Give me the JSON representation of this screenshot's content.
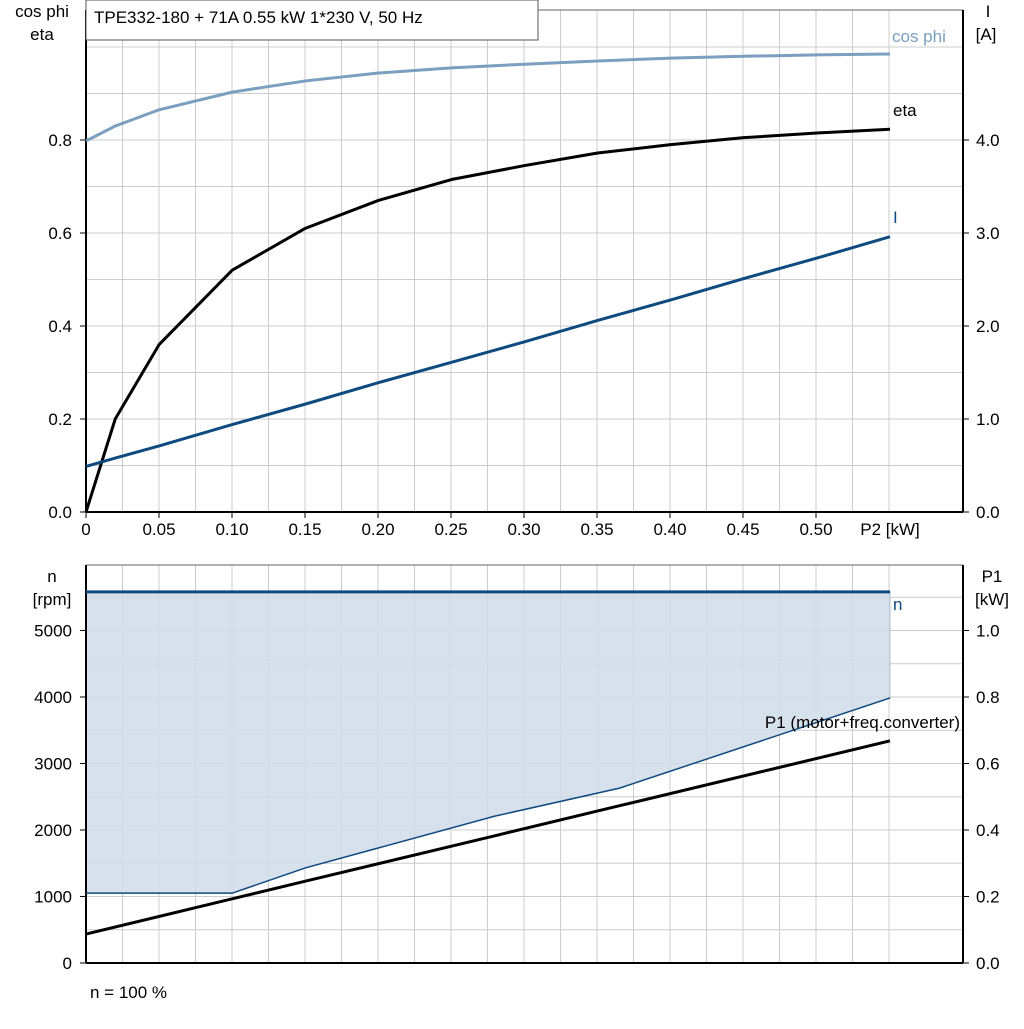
{
  "title": "TPE332-180 + 71A   0.55 kW   1*230 V, 50 Hz",
  "footer": "n = 100 %",
  "colors": {
    "cosphi": "#7a9fc0",
    "eta": "#000000",
    "current": "#0e4a80",
    "speed": "#0e4a80",
    "fill": "#d0dce8",
    "p1": "#000000",
    "grid": "#cccccc"
  },
  "chart_data": [
    {
      "type": "line",
      "x": [
        0,
        0.02,
        0.05,
        0.1,
        0.15,
        0.2,
        0.25,
        0.3,
        0.35,
        0.4,
        0.45,
        0.5,
        0.55
      ],
      "xlabel": "P2 [kW]",
      "xticks": [
        "0",
        "0.05",
        "0.10",
        "0.15",
        "0.20",
        "0.25",
        "0.30",
        "0.35",
        "0.40",
        "0.45",
        "0.50"
      ],
      "xlim": [
        0,
        0.55
      ],
      "ylabel_left": [
        "cos phi",
        "eta"
      ],
      "ylim_left": [
        0,
        1.0
      ],
      "yticks_left": [
        "0.0",
        "0.2",
        "0.4",
        "0.6",
        "0.8"
      ],
      "ylabel_right": [
        "I",
        "[A]"
      ],
      "ylim_right": [
        0,
        5.0
      ],
      "yticks_right": [
        "0.0",
        "1.0",
        "2.0",
        "3.0",
        "4.0"
      ],
      "grid": true,
      "series": [
        {
          "name": "cos phi",
          "axis": "left",
          "values": [
            0.798,
            0.83,
            0.865,
            0.903,
            0.927,
            0.944,
            0.955,
            0.963,
            0.97,
            0.976,
            0.98,
            0.983,
            0.985
          ]
        },
        {
          "name": "eta",
          "axis": "left",
          "values": [
            0,
            0.2,
            0.36,
            0.52,
            0.61,
            0.67,
            0.715,
            0.745,
            0.772,
            0.79,
            0.805,
            0.815,
            0.823
          ]
        },
        {
          "name": "I",
          "axis": "right",
          "values": [
            0.49,
            0.58,
            0.71,
            0.94,
            1.16,
            1.39,
            1.61,
            1.83,
            2.06,
            2.28,
            2.51,
            2.73,
            2.96
          ]
        }
      ]
    },
    {
      "type": "area",
      "x": [
        0,
        0.1,
        0.15,
        0.28,
        0.365,
        0.55
      ],
      "xlim": [
        0,
        0.55
      ],
      "ylabel_left": [
        "n",
        "[rpm]"
      ],
      "ylim_left": [
        0,
        6000
      ],
      "yticks_left": [
        "0",
        "1000",
        "2000",
        "3000",
        "4000",
        "5000"
      ],
      "ylabel_right": [
        "P1",
        "[kW]"
      ],
      "ylim_right": [
        0,
        1.2
      ],
      "yticks_right": [
        "0.0",
        "0.2",
        "0.4",
        "0.6",
        "0.8",
        "1.0"
      ],
      "grid": true,
      "series": [
        {
          "name": "n",
          "axis": "left",
          "values": [
            5580,
            5580,
            5580,
            5580,
            5580,
            5580
          ]
        },
        {
          "axis": "left",
          "values": [
            1050,
            1050,
            1430,
            2210,
            2630,
            3985
          ]
        },
        {
          "name": "P1 (motor+freq.converter)",
          "axis": "right",
          "values": [
            0.087,
            0.193,
            0.246,
            0.383,
            0.473,
            0.668
          ]
        }
      ]
    }
  ]
}
